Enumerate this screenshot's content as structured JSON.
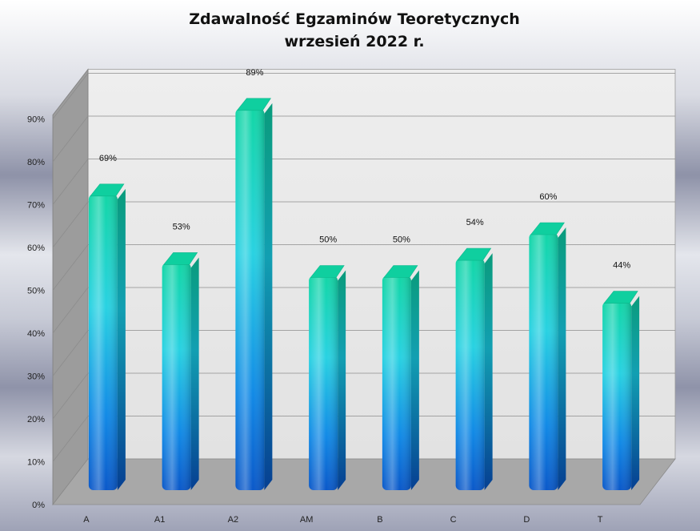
{
  "chart_data": {
    "type": "bar",
    "title": "Zdawalność Egzaminów Teoretycznych",
    "subtitle": "wrzesień 2022 r.",
    "categories": [
      "A",
      "A1",
      "A2",
      "AM",
      "B",
      "C",
      "D",
      "T"
    ],
    "values": [
      69,
      53,
      89,
      50,
      50,
      54,
      60,
      44
    ],
    "data_labels": [
      "69%",
      "53%",
      "89%",
      "50%",
      "50%",
      "54%",
      "60%",
      "44%"
    ],
    "y_ticks": [
      "0%",
      "10%",
      "20%",
      "30%",
      "40%",
      "50%",
      "60%",
      "70%",
      "80%",
      "90%"
    ],
    "ylim": [
      0,
      90
    ],
    "grid": true,
    "legend": "none",
    "style": "3d-cylinder-bars",
    "colors": {
      "bar_top": "#1ad7b0",
      "bar_mid": "#22cfe0",
      "bar_bottom": "#0a5ed0",
      "wall": "#e8e8e8",
      "floor": "#a9a9a9"
    }
  }
}
